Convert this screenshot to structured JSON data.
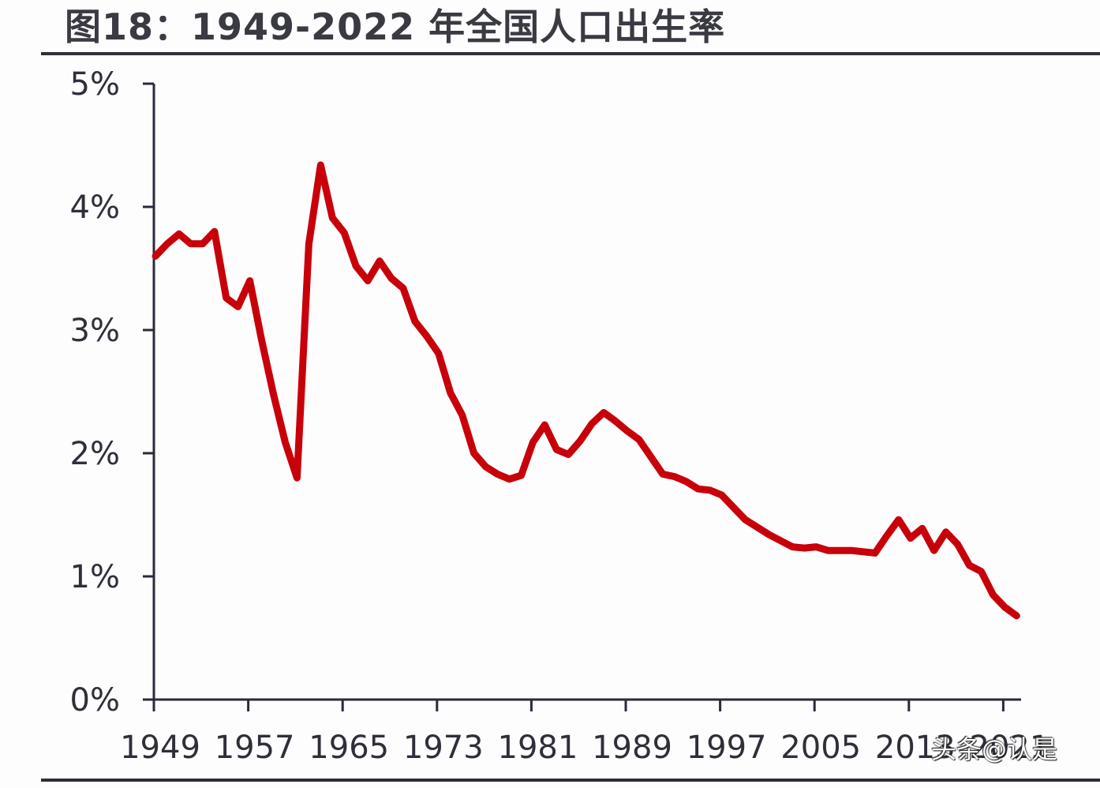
{
  "title": "图18：1949-2022 年全国人口出生率",
  "watermark": "头条@认是",
  "colors": {
    "line": "#c8000a",
    "axis": "#2a2a3a",
    "text": "#2f2f3a"
  },
  "chart_data": {
    "type": "line",
    "title": "图18：1949-2022 年全国人口出生率",
    "xlabel": "",
    "ylabel": "",
    "ylim": [
      0,
      5
    ],
    "xlim": [
      1949,
      2022
    ],
    "grid": false,
    "legend": null,
    "y_ticks": [
      "0%",
      "1%",
      "2%",
      "3%",
      "4%",
      "5%"
    ],
    "y_tick_values": [
      0,
      1,
      2,
      3,
      4,
      5
    ],
    "x_ticks": [
      "1949",
      "1957",
      "1965",
      "1973",
      "1981",
      "1989",
      "1997",
      "2005",
      "2013",
      "2021"
    ],
    "series": [
      {
        "name": "全国人口出生率 (%)",
        "x": [
          1949,
          1950,
          1951,
          1952,
          1953,
          1954,
          1955,
          1956,
          1957,
          1958,
          1959,
          1960,
          1961,
          1962,
          1963,
          1964,
          1965,
          1966,
          1967,
          1968,
          1969,
          1970,
          1971,
          1972,
          1973,
          1974,
          1975,
          1976,
          1977,
          1978,
          1979,
          1980,
          1981,
          1982,
          1983,
          1984,
          1985,
          1986,
          1987,
          1988,
          1989,
          1990,
          1991,
          1992,
          1993,
          1994,
          1995,
          1996,
          1997,
          1998,
          1999,
          2000,
          2001,
          2002,
          2003,
          2004,
          2005,
          2006,
          2007,
          2008,
          2009,
          2010,
          2011,
          2012,
          2013,
          2014,
          2015,
          2016,
          2017,
          2018,
          2019,
          2020,
          2021,
          2022
        ],
        "values": [
          3.6,
          3.7,
          3.78,
          3.7,
          3.7,
          3.8,
          3.26,
          3.19,
          3.4,
          2.92,
          2.48,
          2.09,
          1.8,
          3.7,
          4.34,
          3.91,
          3.79,
          3.52,
          3.4,
          3.56,
          3.42,
          3.34,
          3.07,
          2.95,
          2.81,
          2.49,
          2.31,
          2.0,
          1.89,
          1.83,
          1.79,
          1.82,
          2.09,
          2.23,
          2.03,
          1.99,
          2.1,
          2.24,
          2.33,
          2.26,
          2.18,
          2.11,
          1.97,
          1.83,
          1.81,
          1.77,
          1.71,
          1.7,
          1.66,
          1.56,
          1.46,
          1.4,
          1.34,
          1.29,
          1.24,
          1.23,
          1.24,
          1.21,
          1.21,
          1.21,
          1.2,
          1.19,
          1.33,
          1.46,
          1.31,
          1.39,
          1.21,
          1.36,
          1.26,
          1.09,
          1.04,
          0.85,
          0.75,
          0.68
        ]
      }
    ]
  }
}
